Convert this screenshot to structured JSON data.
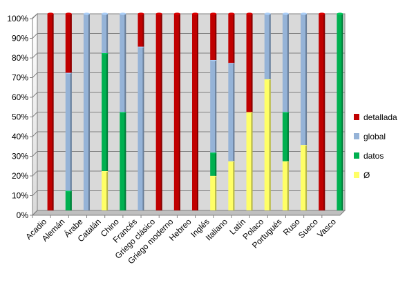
{
  "chart_data": {
    "type": "bar",
    "stacked": true,
    "percent_stacked": true,
    "title": "",
    "xlabel": "",
    "ylabel": "",
    "ylim": [
      0,
      100
    ],
    "y_ticks": [
      "0%",
      "10%",
      "20%",
      "30%",
      "40%",
      "50%",
      "60%",
      "70%",
      "80%",
      "90%",
      "100%"
    ],
    "grid": true,
    "legend_position": "right",
    "categories": [
      "Acadio",
      "Alemán",
      "Árabe",
      "Catalán",
      "Chino",
      "Francés",
      "Griego clásico",
      "Griego moderno",
      "Hebreo",
      "Inglés",
      "Italiano",
      "Latín",
      "Polaco",
      "Portugués",
      "Ruso",
      "Sueco",
      "Vasco"
    ],
    "series": [
      {
        "name": "Ø",
        "color": "#ffff66",
        "values": [
          0,
          0,
          0,
          20,
          0,
          0,
          0,
          0,
          0,
          17.6,
          25,
          50,
          66.7,
          25,
          33.3,
          0,
          0
        ]
      },
      {
        "name": "datos",
        "color": "#00b050",
        "values": [
          0,
          10,
          0,
          60,
          50,
          0,
          0,
          0,
          0,
          11.8,
          0,
          0,
          0,
          25,
          0,
          0,
          100
        ]
      },
      {
        "name": "global",
        "color": "#95b3d7",
        "values": [
          0,
          60,
          100,
          20,
          50,
          83.3,
          0,
          0,
          0,
          47.1,
          50,
          0,
          33.3,
          50,
          66.7,
          0,
          0
        ]
      },
      {
        "name": "detallada",
        "color": "#c00000",
        "values": [
          100,
          30,
          0,
          0,
          0,
          16.7,
          100,
          100,
          100,
          23.5,
          25,
          50,
          0,
          0,
          0,
          100,
          0
        ]
      }
    ],
    "legend_order": [
      "detallada",
      "global",
      "datos",
      "Ø"
    ]
  }
}
